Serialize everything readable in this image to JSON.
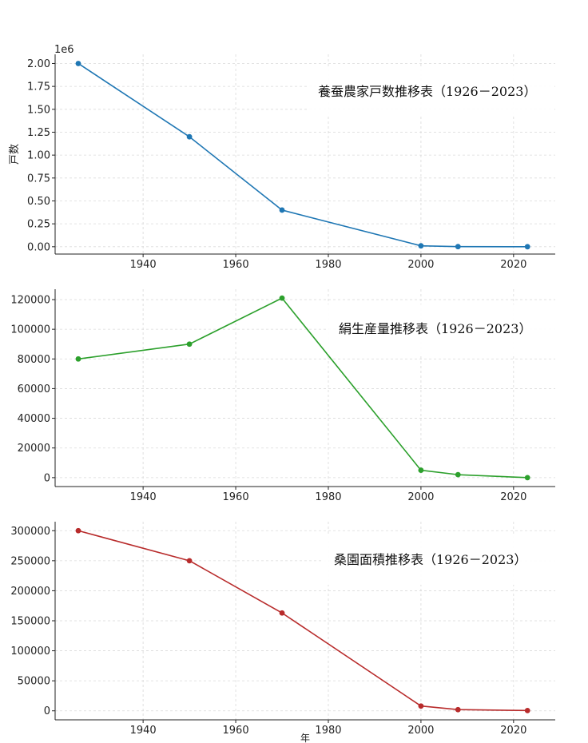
{
  "chart_data": [
    {
      "type": "line",
      "title": "養蚕農家戸数推移表（1926－2023）",
      "ylabel": "戸数",
      "y_offset_label": "1e6",
      "color": "#1f77b4",
      "x": [
        1926,
        1950,
        1970,
        2000,
        2008,
        2023
      ],
      "values": [
        2000000,
        1200000,
        400000,
        10000,
        1000,
        300
      ],
      "xlim": [
        1921,
        2029
      ],
      "ylim": [
        -80000,
        2100000
      ],
      "xticks": [
        1940,
        1960,
        1980,
        2000,
        2020
      ],
      "yticks": [
        0,
        250000,
        500000,
        750000,
        1000000,
        1250000,
        1500000,
        1750000,
        2000000
      ],
      "ytick_labels": [
        "0.00",
        "0.25",
        "0.50",
        "0.75",
        "1.00",
        "1.25",
        "1.50",
        "1.75",
        "2.00"
      ],
      "grid": true
    },
    {
      "type": "line",
      "title": "絹生産量推移表（1926－2023）",
      "ylabel": "",
      "color": "#2ca02c",
      "x": [
        1926,
        1950,
        1970,
        2000,
        2008,
        2023
      ],
      "values": [
        80000,
        90000,
        121000,
        5000,
        2000,
        0
      ],
      "xlim": [
        1921,
        2029
      ],
      "ylim": [
        -6000,
        127000
      ],
      "xticks": [
        1940,
        1960,
        1980,
        2000,
        2020
      ],
      "yticks": [
        0,
        20000,
        40000,
        60000,
        80000,
        100000,
        120000
      ],
      "ytick_labels": [
        "0",
        "20000",
        "40000",
        "60000",
        "80000",
        "100000",
        "120000"
      ],
      "grid": true
    },
    {
      "type": "line",
      "title": "桑園面積推移表（1926－2023）",
      "ylabel": "",
      "xlabel": "年",
      "color": "#b82b2b",
      "x": [
        1926,
        1950,
        1970,
        2000,
        2008,
        2023
      ],
      "values": [
        300000,
        250000,
        163000,
        8000,
        2000,
        500
      ],
      "xlim": [
        1921,
        2029
      ],
      "ylim": [
        -15000,
        315000
      ],
      "xticks": [
        1940,
        1960,
        1980,
        2000,
        2020
      ],
      "yticks": [
        0,
        50000,
        100000,
        150000,
        200000,
        250000,
        300000
      ],
      "ytick_labels": [
        "0",
        "50000",
        "100000",
        "150000",
        "200000",
        "250000",
        "300000"
      ],
      "grid": true
    }
  ]
}
